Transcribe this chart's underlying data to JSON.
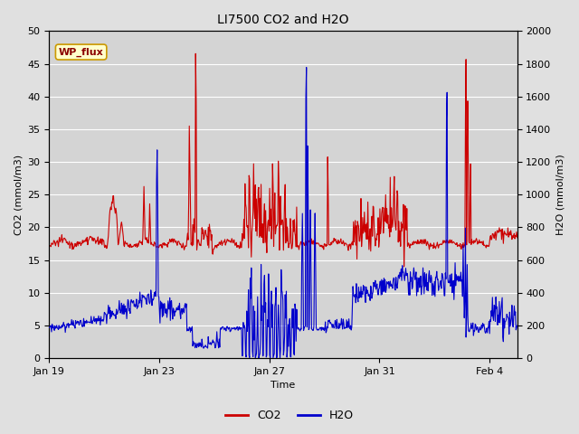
{
  "title": "LI7500 CO2 and H2O",
  "xlabel": "Time",
  "ylabel_left": "CO2 (mmol/m3)",
  "ylabel_right": "H2O (mmol/m3)",
  "ylim_left": [
    0,
    50
  ],
  "ylim_right": [
    0,
    2000
  ],
  "yticks_left": [
    0,
    5,
    10,
    15,
    20,
    25,
    30,
    35,
    40,
    45,
    50
  ],
  "yticks_right": [
    0,
    200,
    400,
    600,
    800,
    1000,
    1200,
    1400,
    1600,
    1800,
    2000
  ],
  "xtick_labels": [
    "Jan 19",
    "Jan 23",
    "Jan 27",
    "Jan 31",
    "Feb 4"
  ],
  "xtick_positions": [
    0,
    4,
    8,
    12,
    16
  ],
  "xlim": [
    0,
    17
  ],
  "co2_color": "#CC0000",
  "h2o_color": "#0000CC",
  "background_color": "#E0E0E0",
  "plot_bg_color": "#D4D4D4",
  "grid_color": "#FFFFFF",
  "annotation_text": "WP_flux",
  "annotation_bg": "#FFFFCC",
  "annotation_border": "#CC9900",
  "legend_co2": "CO2",
  "legend_h2o": "H2O",
  "figsize": [
    6.4,
    4.8
  ],
  "dpi": 100
}
